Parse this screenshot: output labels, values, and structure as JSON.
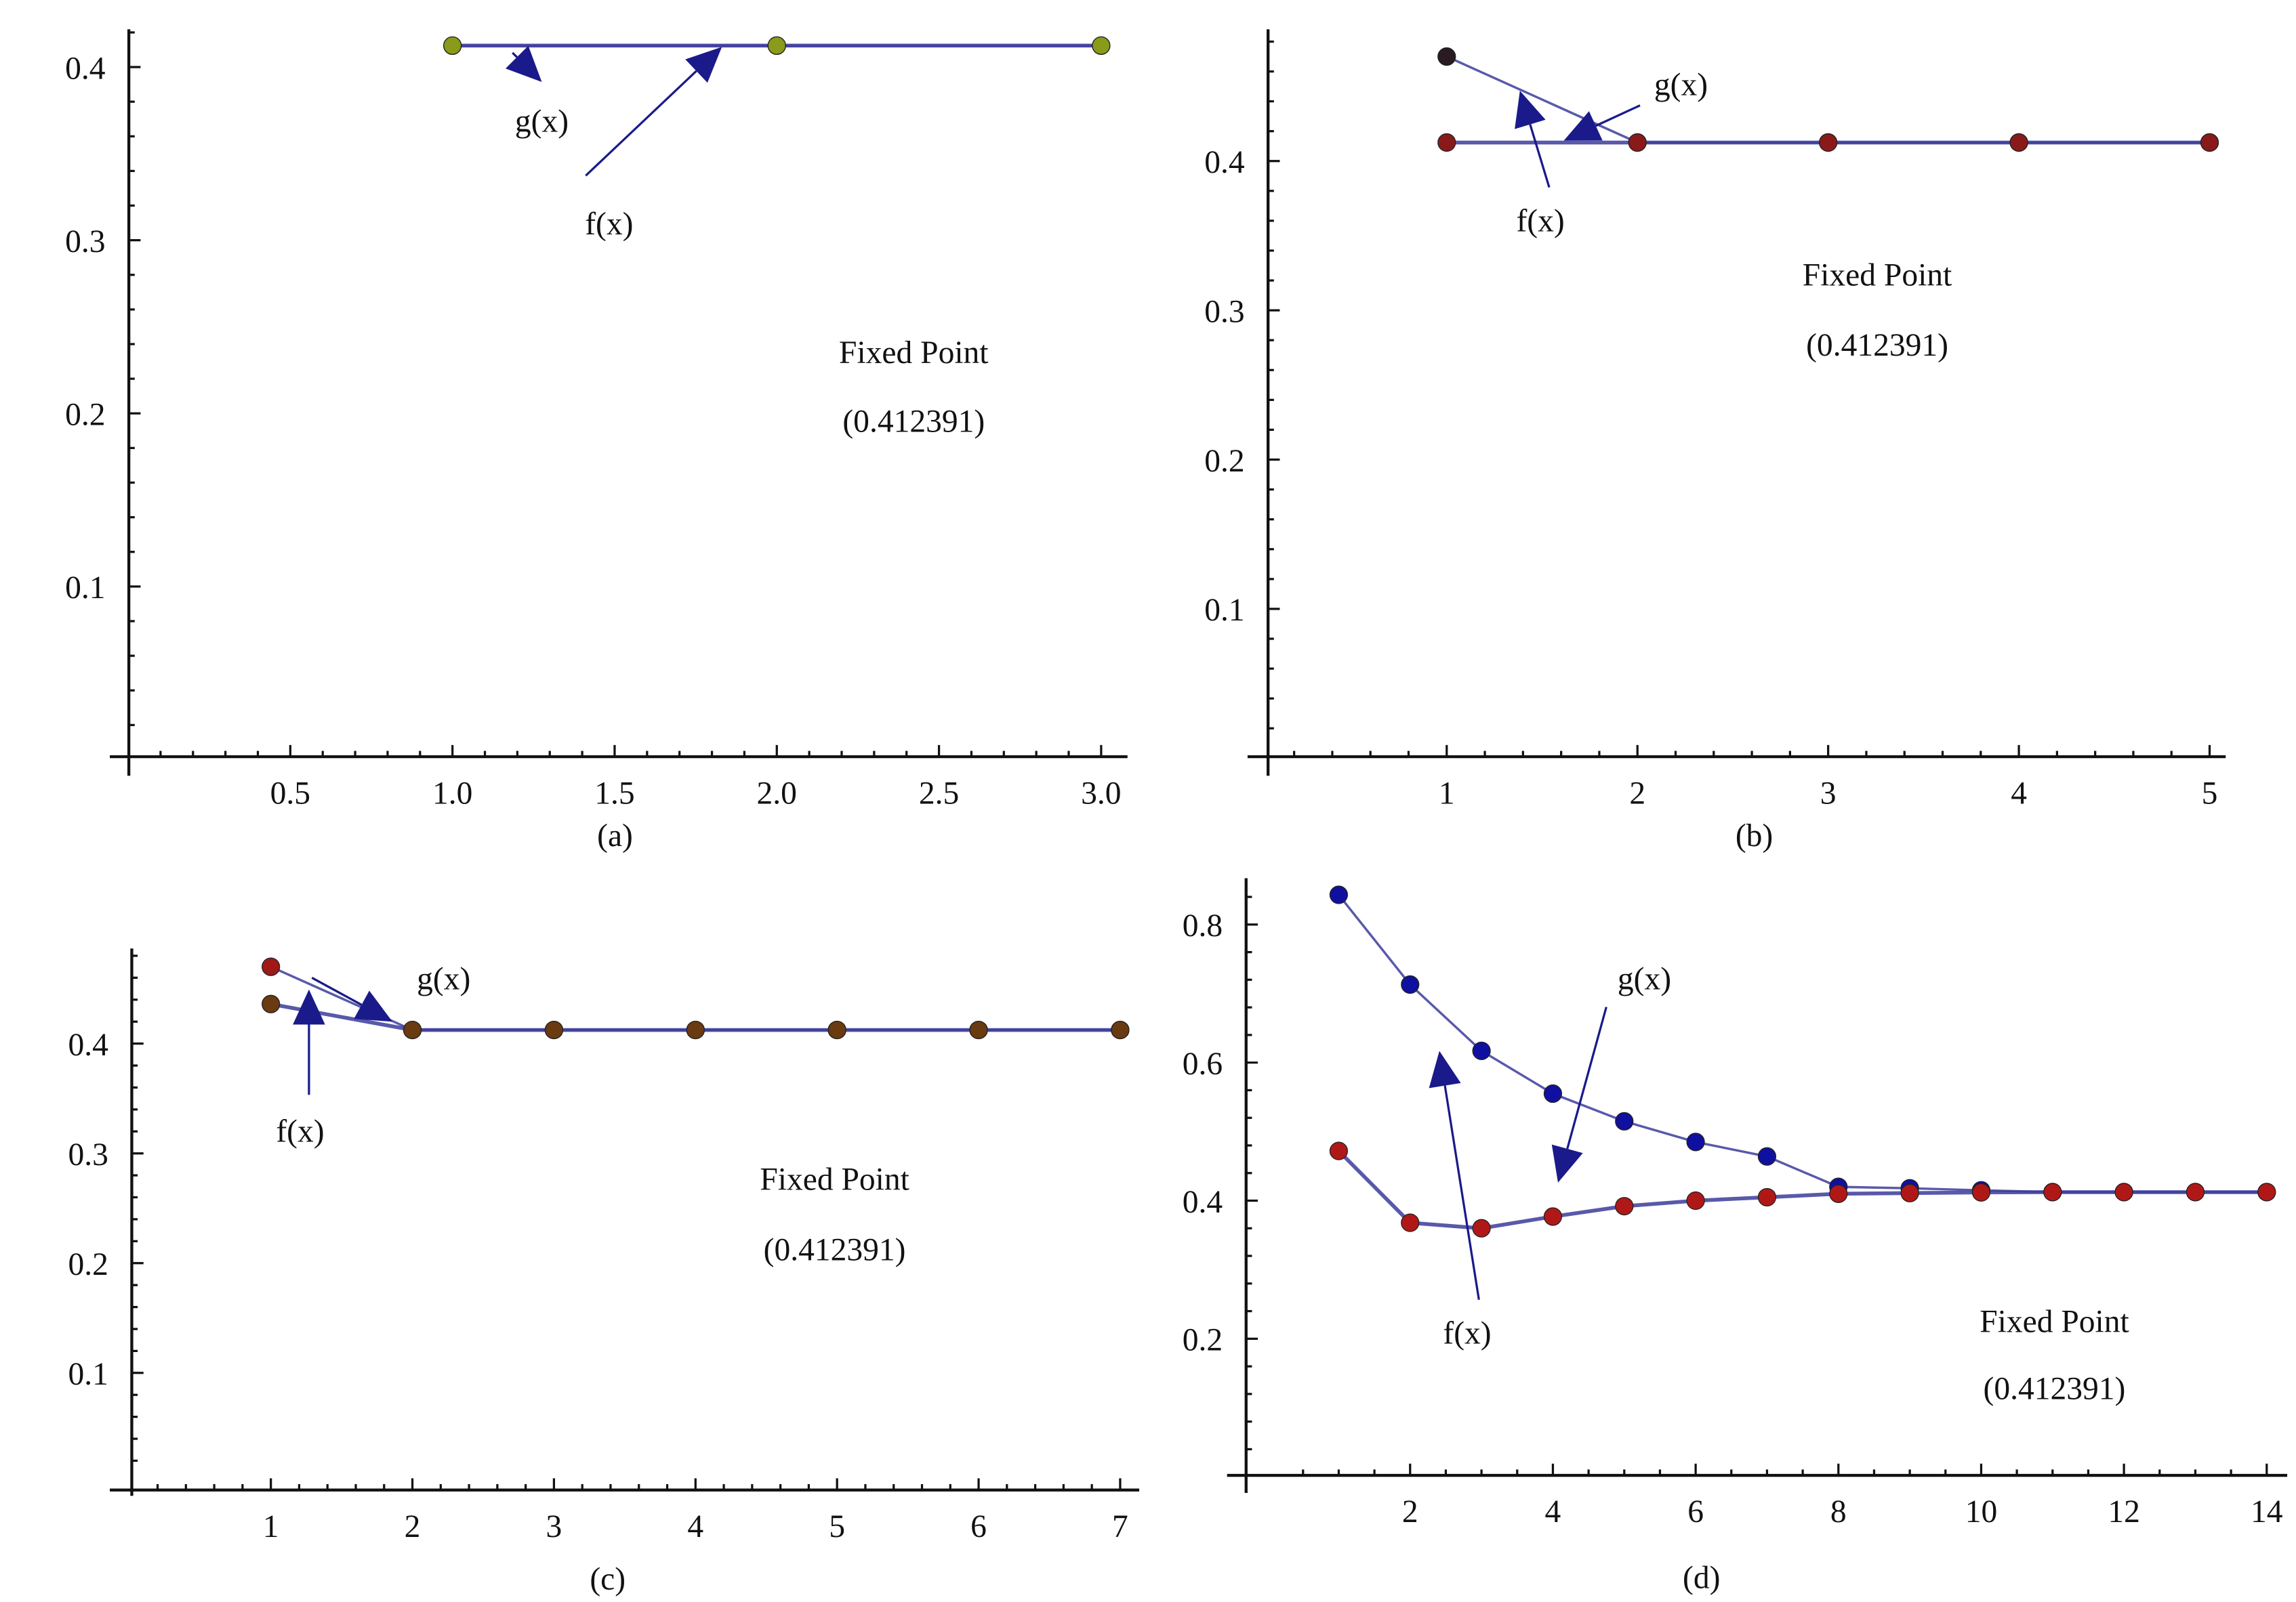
{
  "chart_data": [
    {
      "type": "line",
      "caption": "(a)",
      "xlim": [
        0,
        3.0
      ],
      "ylim": [
        0,
        0.42
      ],
      "xticks": [
        "0.5",
        "1.0",
        "1.5",
        "2.0",
        "2.5",
        "3.0"
      ],
      "xtick_values": [
        0.5,
        1.0,
        1.5,
        2.0,
        2.5,
        3.0
      ],
      "yticks": [
        "0.1",
        "0.2",
        "0.3",
        "0.4"
      ],
      "ytick_values": [
        0.1,
        0.2,
        0.3,
        0.4
      ],
      "series": [
        {
          "name": "g(x)",
          "x": [
            1,
            2,
            3
          ],
          "y": [
            0.412391,
            0.412391,
            0.412391
          ],
          "color": "#8a9a1a"
        },
        {
          "name": "f(x)",
          "x": [
            1,
            2,
            3
          ],
          "y": [
            0.412391,
            0.412391,
            0.412391
          ],
          "color": "#8a9a1a"
        }
      ],
      "annotations": {
        "fixed_point_label": "Fixed Point",
        "fixed_point_value": "(0.412391)",
        "g_label": "g(x)",
        "f_label": "f(x)"
      }
    },
    {
      "type": "line",
      "caption": "(b)",
      "xlim": [
        0,
        5
      ],
      "ylim": [
        0,
        0.48
      ],
      "xticks": [
        "1",
        "2",
        "3",
        "4",
        "5"
      ],
      "xtick_values": [
        1,
        2,
        3,
        4,
        5
      ],
      "yticks": [
        "0.1",
        "0.2",
        "0.3",
        "0.4"
      ],
      "ytick_values": [
        0.1,
        0.2,
        0.3,
        0.4
      ],
      "series": [
        {
          "name": "g(x)",
          "x": [
            1,
            2,
            3,
            4,
            5
          ],
          "y": [
            0.47,
            0.412391,
            0.412391,
            0.412391,
            0.412391
          ],
          "color": "#2a1a22"
        },
        {
          "name": "f(x)",
          "x": [
            1,
            2,
            3,
            4,
            5
          ],
          "y": [
            0.412391,
            0.412391,
            0.412391,
            0.412391,
            0.412391
          ],
          "color": "#8a1a1a"
        }
      ],
      "annotations": {
        "fixed_point_label": "Fixed Point",
        "fixed_point_value": "(0.412391)",
        "g_label": "g(x)",
        "f_label": "f(x)"
      }
    },
    {
      "type": "line",
      "caption": "(c)",
      "xlim": [
        0,
        7
      ],
      "ylim": [
        0,
        0.48
      ],
      "xticks": [
        "1",
        "2",
        "3",
        "4",
        "5",
        "6",
        "7"
      ],
      "xtick_values": [
        1,
        2,
        3,
        4,
        5,
        6,
        7
      ],
      "yticks": [
        "0.1",
        "0.2",
        "0.3",
        "0.4"
      ],
      "ytick_values": [
        0.1,
        0.2,
        0.3,
        0.4
      ],
      "series": [
        {
          "name": "g(x)",
          "x": [
            1,
            2,
            3,
            4,
            5,
            6,
            7
          ],
          "y": [
            0.47,
            0.412391,
            0.412391,
            0.412391,
            0.412391,
            0.412391,
            0.412391
          ],
          "color": "#a01818"
        },
        {
          "name": "f(x)",
          "x": [
            1,
            2,
            3,
            4,
            5,
            6,
            7
          ],
          "y": [
            0.436,
            0.412391,
            0.412391,
            0.412391,
            0.412391,
            0.412391,
            0.412391
          ],
          "color": "#6a3a10"
        }
      ],
      "annotations": {
        "fixed_point_label": "Fixed Point",
        "fixed_point_value": "(0.412391)",
        "g_label": "g(x)",
        "f_label": "f(x)"
      }
    },
    {
      "type": "line",
      "caption": "(d)",
      "xlim": [
        0,
        14
      ],
      "ylim": [
        0,
        0.87
      ],
      "xticks": [
        "2",
        "4",
        "6",
        "8",
        "10",
        "12",
        "14"
      ],
      "xtick_values": [
        2,
        4,
        6,
        8,
        10,
        12,
        14
      ],
      "yticks": [
        "0.2",
        "0.4",
        "0.6",
        "0.8"
      ],
      "ytick_values": [
        0.2,
        0.4,
        0.6,
        0.8
      ],
      "series": [
        {
          "name": "g(x)",
          "x": [
            1,
            2,
            3,
            4,
            5,
            6,
            7,
            8,
            9,
            10,
            11,
            12,
            13,
            14
          ],
          "y": [
            0.843,
            0.713,
            0.617,
            0.555,
            0.515,
            0.485,
            0.464,
            0.42,
            0.418,
            0.415,
            0.4124,
            0.4124,
            0.4124,
            0.4124
          ],
          "color": "#1010a0"
        },
        {
          "name": "f(x)",
          "x": [
            1,
            2,
            3,
            4,
            5,
            6,
            7,
            8,
            9,
            10,
            11,
            12,
            13,
            14
          ],
          "y": [
            0.472,
            0.368,
            0.36,
            0.377,
            0.392,
            0.4,
            0.405,
            0.41,
            0.411,
            0.412,
            0.4124,
            0.4124,
            0.4124,
            0.4124
          ],
          "color": "#b01818"
        }
      ],
      "annotations": {
        "fixed_point_label": "Fixed Point",
        "fixed_point_value": "(0.412391)",
        "g_label": "g(x)",
        "f_label": "f(x)"
      }
    }
  ],
  "colors": {
    "line": "#3c3c9c",
    "arrow": "#1a1a8a",
    "axis": "#111111"
  }
}
